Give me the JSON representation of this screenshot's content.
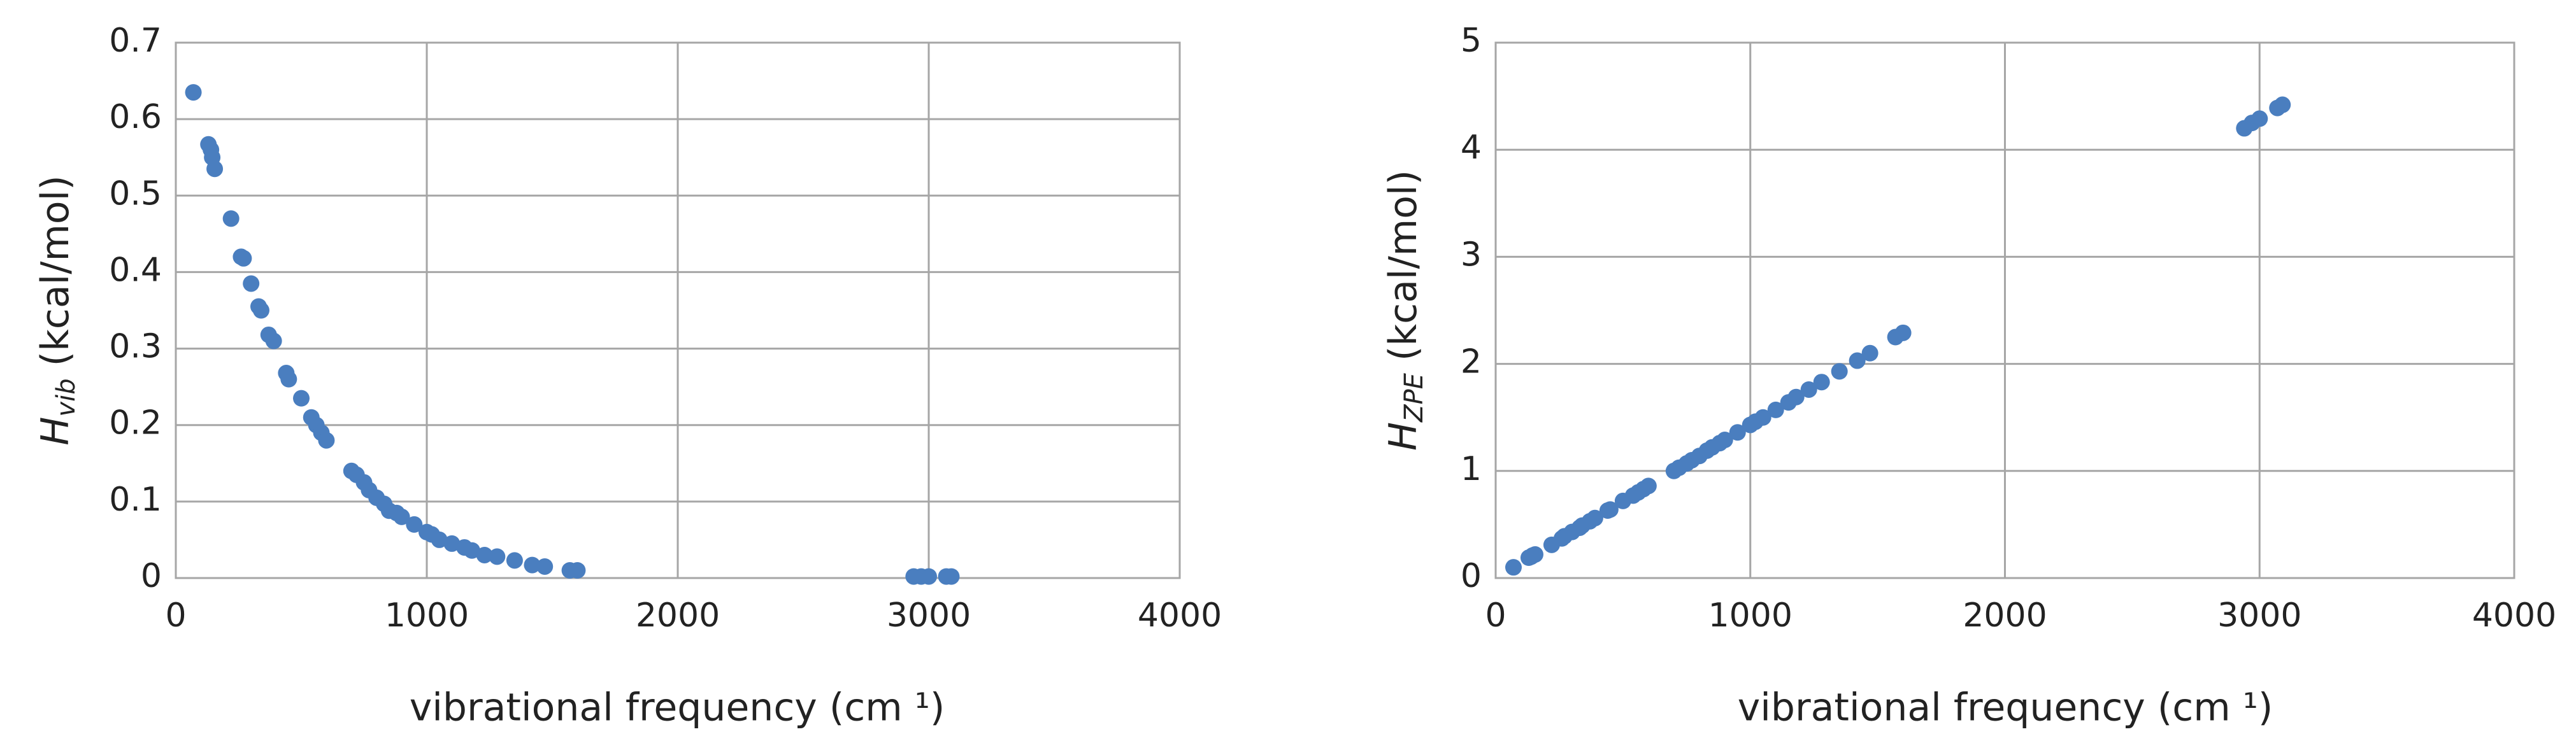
{
  "chart_data": [
    {
      "type": "scatter",
      "xlabel": "vibrational frequency (cm ¹)",
      "ylabel": {
        "main": "H",
        "sub": "vib",
        "unit": " (kcal/mol)"
      },
      "color": "#4a7ebf",
      "grid": true,
      "xlim": [
        0,
        4000
      ],
      "xticks": [
        0,
        1000,
        2000,
        3000,
        4000
      ],
      "ylim": [
        0,
        0.7
      ],
      "yticks": [
        0,
        0.1,
        0.2,
        0.3,
        0.4,
        0.5,
        0.6,
        0.7
      ],
      "x": [
        70,
        130,
        140,
        145,
        155,
        220,
        260,
        270,
        300,
        330,
        340,
        370,
        390,
        440,
        450,
        500,
        540,
        560,
        580,
        600,
        700,
        720,
        750,
        770,
        800,
        830,
        850,
        880,
        900,
        950,
        1000,
        1020,
        1050,
        1100,
        1150,
        1180,
        1230,
        1280,
        1350,
        1420,
        1470,
        1570,
        1600,
        2940,
        2970,
        3000,
        3070,
        3090
      ],
      "values": [
        0.635,
        0.567,
        0.56,
        0.55,
        0.535,
        0.47,
        0.42,
        0.418,
        0.385,
        0.355,
        0.35,
        0.318,
        0.31,
        0.268,
        0.26,
        0.235,
        0.21,
        0.2,
        0.19,
        0.18,
        0.14,
        0.135,
        0.125,
        0.115,
        0.105,
        0.097,
        0.088,
        0.085,
        0.08,
        0.07,
        0.06,
        0.057,
        0.05,
        0.045,
        0.04,
        0.036,
        0.03,
        0.028,
        0.023,
        0.017,
        0.015,
        0.01,
        0.01,
        0.002,
        0.002,
        0.002,
        0.002,
        0.002
      ]
    },
    {
      "type": "scatter",
      "xlabel": "vibrational frequency (cm ¹)",
      "ylabel": {
        "main": "H",
        "sub": "ZPE",
        "unit": " (kcal/mol)"
      },
      "color": "#4a7ebf",
      "grid": true,
      "xlim": [
        0,
        4000
      ],
      "xticks": [
        0,
        1000,
        2000,
        3000,
        4000
      ],
      "ylim": [
        0,
        5
      ],
      "yticks": [
        0,
        1,
        2,
        3,
        4,
        5
      ],
      "x": [
        70,
        130,
        140,
        145,
        155,
        220,
        260,
        270,
        300,
        330,
        340,
        370,
        390,
        440,
        450,
        500,
        540,
        560,
        580,
        600,
        700,
        720,
        750,
        770,
        800,
        830,
        850,
        880,
        900,
        950,
        1000,
        1020,
        1050,
        1100,
        1150,
        1180,
        1230,
        1280,
        1350,
        1420,
        1470,
        1570,
        1600,
        2940,
        2970,
        3000,
        3070,
        3090
      ],
      "values": [
        0.1,
        0.19,
        0.2,
        0.21,
        0.22,
        0.31,
        0.37,
        0.39,
        0.43,
        0.47,
        0.49,
        0.53,
        0.56,
        0.63,
        0.64,
        0.72,
        0.77,
        0.8,
        0.83,
        0.86,
        1.0,
        1.03,
        1.07,
        1.1,
        1.14,
        1.19,
        1.22,
        1.26,
        1.29,
        1.36,
        1.43,
        1.46,
        1.5,
        1.57,
        1.64,
        1.69,
        1.76,
        1.83,
        1.93,
        2.03,
        2.1,
        2.25,
        2.29,
        4.2,
        4.25,
        4.29,
        4.39,
        4.42
      ]
    }
  ]
}
